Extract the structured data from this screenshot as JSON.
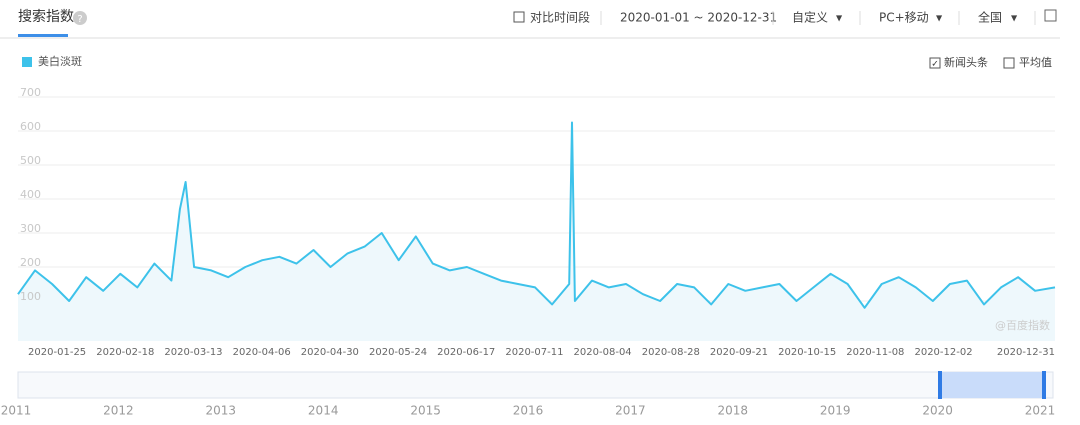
{
  "header": {
    "title": "搜索指数",
    "compare": "对比时间段",
    "date_range": "2020-01-01 ~ 2020-12-31",
    "custom": "自定义",
    "device": "PC+移动",
    "region": "全国"
  },
  "options": {
    "news": "新闻头条",
    "news_checked": true,
    "average": "平均值",
    "average_checked": false
  },
  "watermark": "@百度指数",
  "navigator": {
    "years": [
      "2011",
      "2012",
      "2013",
      "2014",
      "2015",
      "2016",
      "2017",
      "2018",
      "2019",
      "2020",
      "2021"
    ]
  },
  "chart_data": {
    "type": "line",
    "x": [
      "2020-01-01",
      "2020-01-07",
      "2020-01-13",
      "2020-01-19",
      "2020-01-25",
      "2020-01-31",
      "2020-02-06",
      "2020-02-12",
      "2020-02-18",
      "2020-02-24",
      "2020-02-27",
      "2020-02-29",
      "2020-03-03",
      "2020-03-09",
      "2020-03-15",
      "2020-03-21",
      "2020-03-27",
      "2020-04-02",
      "2020-04-08",
      "2020-04-14",
      "2020-04-20",
      "2020-04-26",
      "2020-05-02",
      "2020-05-08",
      "2020-05-14",
      "2020-05-20",
      "2020-05-26",
      "2020-06-01",
      "2020-06-07",
      "2020-06-13",
      "2020-06-19",
      "2020-06-25",
      "2020-07-01",
      "2020-07-07",
      "2020-07-13",
      "2020-07-14",
      "2020-07-15",
      "2020-07-21",
      "2020-07-27",
      "2020-08-02",
      "2020-08-08",
      "2020-08-14",
      "2020-08-20",
      "2020-08-26",
      "2020-09-01",
      "2020-09-07",
      "2020-09-13",
      "2020-09-19",
      "2020-09-25",
      "2020-10-01",
      "2020-10-07",
      "2020-10-13",
      "2020-10-19",
      "2020-10-25",
      "2020-10-31",
      "2020-11-06",
      "2020-11-12",
      "2020-11-18",
      "2020-11-24",
      "2020-11-30",
      "2020-12-06",
      "2020-12-12",
      "2020-12-18",
      "2020-12-24",
      "2020-12-31"
    ],
    "series": [
      {
        "name": "美白淡斑",
        "color": "#3dc2ea",
        "values": [
          120,
          190,
          150,
          100,
          170,
          130,
          180,
          140,
          210,
          160,
          370,
          450,
          200,
          190,
          170,
          200,
          220,
          230,
          210,
          250,
          200,
          240,
          260,
          300,
          220,
          290,
          210,
          190,
          200,
          180,
          160,
          150,
          140,
          90,
          150,
          625,
          100,
          160,
          140,
          150,
          120,
          100,
          150,
          140,
          90,
          150,
          130,
          140,
          150,
          100,
          140,
          180,
          150,
          80,
          150,
          170,
          140,
          100,
          150,
          160,
          90,
          140,
          170,
          130,
          140
        ]
      }
    ],
    "xlim": [
      "2020-01-01",
      "2020-12-31"
    ],
    "xticks": [
      "2020-01-25",
      "2020-02-18",
      "2020-03-13",
      "2020-04-06",
      "2020-04-30",
      "2020-05-24",
      "2020-06-17",
      "2020-07-11",
      "2020-08-04",
      "2020-08-28",
      "2020-09-21",
      "2020-10-15",
      "2020-11-08",
      "2020-12-02",
      "2020-12-31"
    ],
    "ylim": [
      0,
      700
    ],
    "yticks": [
      100,
      200,
      300,
      400,
      500,
      600,
      700
    ],
    "grid": true
  }
}
